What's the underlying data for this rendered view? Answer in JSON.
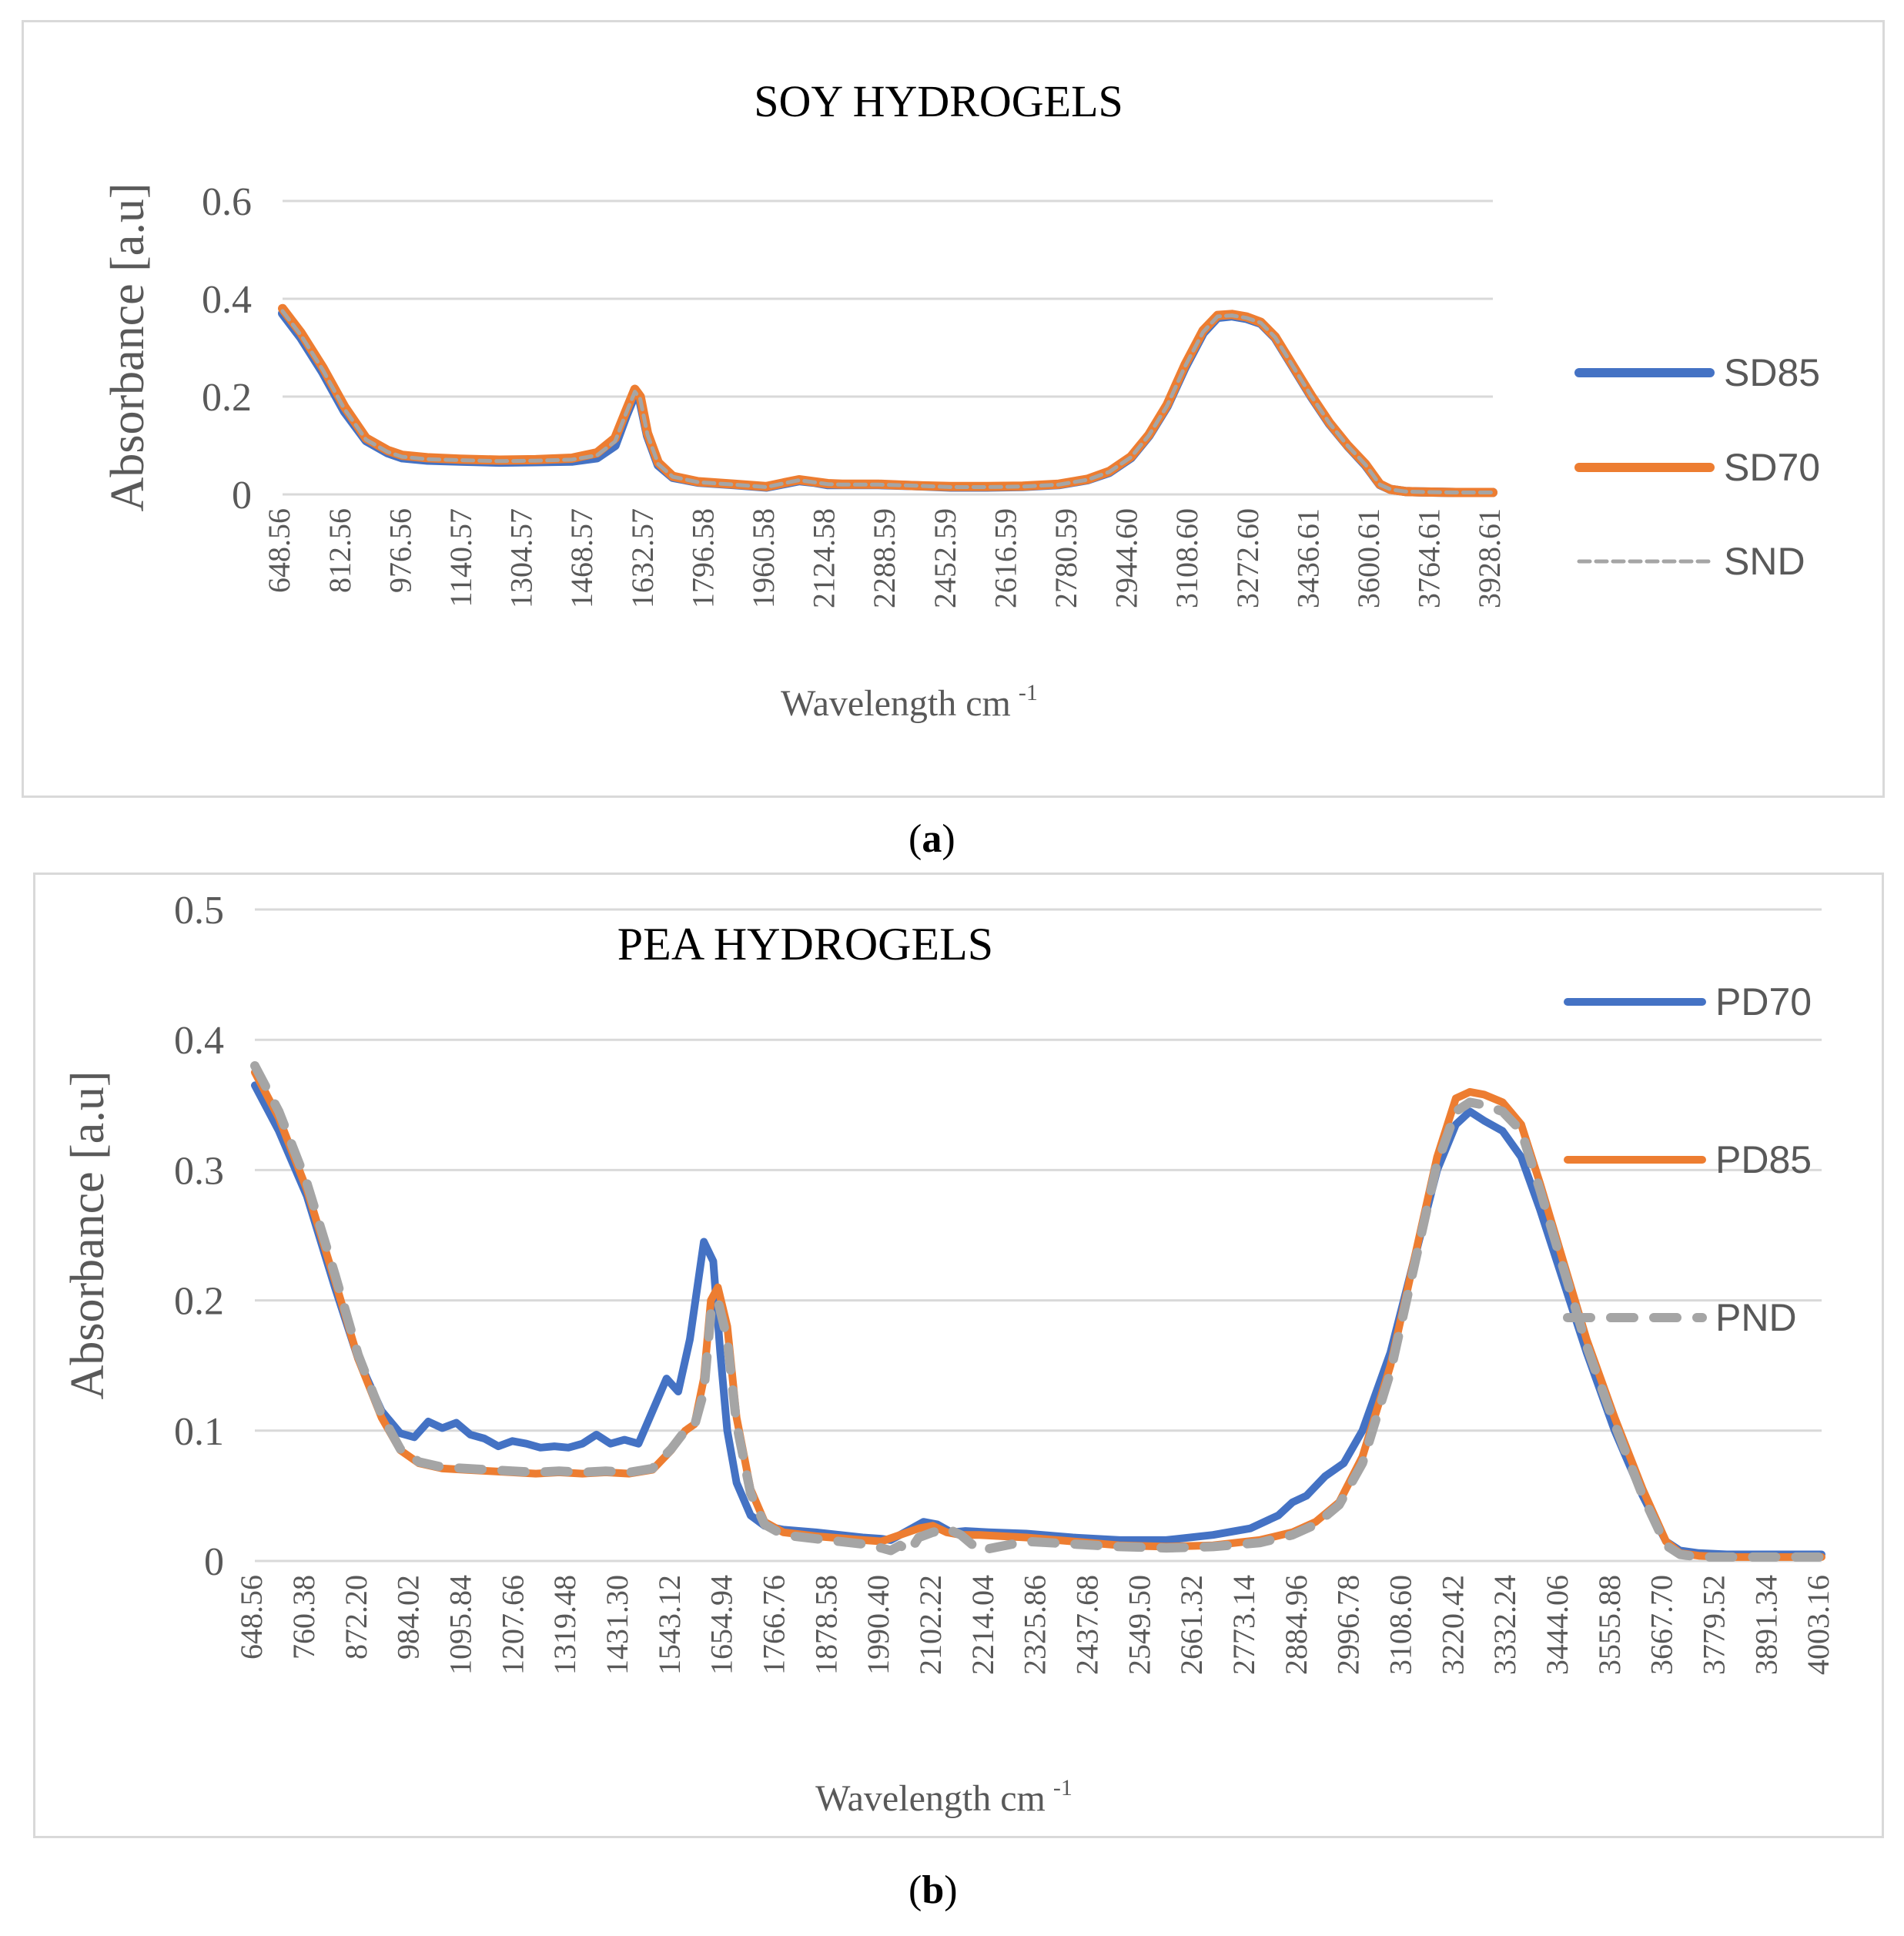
{
  "chart_data": [
    {
      "type": "line",
      "title": "SOY HYDROGELS",
      "xlabel": "Wavelength cm",
      "xlabel_superscript": "-1",
      "ylabel": "Absorbance [a.u]",
      "ylim": [
        0,
        0.6
      ],
      "yticks": [
        "0",
        "0.2",
        "0.4",
        "0.6"
      ],
      "xlim": [
        648.56,
        4003.16
      ],
      "xticks": [
        "648.56",
        "812.56",
        "976.56",
        "1140.57",
        "1304.57",
        "1468.57",
        "1632.57",
        "1796.58",
        "1960.58",
        "2124.58",
        "2288.59",
        "2452.59",
        "2616.59",
        "2780.59",
        "2944.60",
        "3108.60",
        "3272.60",
        "3436.61",
        "3600.61",
        "3764.61",
        "3928.61"
      ],
      "legend_position": "right",
      "series": [
        {
          "name": "SD85",
          "color": "#4472C4",
          "style": "solid",
          "x": [
            648.56,
            700,
            760,
            820,
            880,
            940,
            980,
            1050,
            1140,
            1250,
            1350,
            1450,
            1520,
            1570,
            1600,
            1625,
            1640,
            1660,
            1690,
            1730,
            1800,
            1900,
            1990,
            2040,
            2080,
            2120,
            2160,
            2200,
            2300,
            2400,
            2500,
            2600,
            2700,
            2800,
            2880,
            2940,
            3000,
            3050,
            3100,
            3150,
            3200,
            3240,
            3280,
            3320,
            3360,
            3400,
            3450,
            3500,
            3550,
            3600,
            3650,
            3690,
            3720,
            3760,
            3800,
            3900,
            4003.16
          ],
          "y": [
            0.37,
            0.32,
            0.25,
            0.17,
            0.11,
            0.085,
            0.075,
            0.07,
            0.068,
            0.066,
            0.067,
            0.068,
            0.075,
            0.1,
            0.16,
            0.205,
            0.19,
            0.12,
            0.06,
            0.035,
            0.025,
            0.02,
            0.015,
            0.022,
            0.028,
            0.025,
            0.02,
            0.02,
            0.02,
            0.018,
            0.015,
            0.015,
            0.016,
            0.02,
            0.03,
            0.045,
            0.075,
            0.12,
            0.18,
            0.26,
            0.33,
            0.362,
            0.365,
            0.36,
            0.35,
            0.32,
            0.26,
            0.2,
            0.145,
            0.1,
            0.06,
            0.02,
            0.01,
            0.006,
            0.005,
            0.004,
            0.004
          ]
        },
        {
          "name": "SD70",
          "color": "#ED7D31",
          "style": "solid",
          "x": [
            648.56,
            700,
            760,
            820,
            880,
            940,
            980,
            1050,
            1140,
            1250,
            1350,
            1450,
            1520,
            1570,
            1600,
            1625,
            1640,
            1660,
            1690,
            1730,
            1800,
            1900,
            1990,
            2040,
            2080,
            2120,
            2160,
            2200,
            2300,
            2400,
            2500,
            2600,
            2700,
            2800,
            2880,
            2940,
            3000,
            3050,
            3100,
            3150,
            3200,
            3240,
            3280,
            3320,
            3360,
            3400,
            3450,
            3500,
            3550,
            3600,
            3650,
            3690,
            3720,
            3760,
            3800,
            3900,
            4003.16
          ],
          "y": [
            0.38,
            0.33,
            0.26,
            0.18,
            0.115,
            0.09,
            0.08,
            0.075,
            0.072,
            0.07,
            0.071,
            0.074,
            0.085,
            0.115,
            0.17,
            0.215,
            0.2,
            0.125,
            0.065,
            0.037,
            0.026,
            0.021,
            0.016,
            0.024,
            0.03,
            0.026,
            0.022,
            0.021,
            0.021,
            0.018,
            0.016,
            0.016,
            0.017,
            0.021,
            0.031,
            0.047,
            0.077,
            0.122,
            0.183,
            0.265,
            0.335,
            0.366,
            0.368,
            0.363,
            0.352,
            0.322,
            0.262,
            0.202,
            0.147,
            0.101,
            0.062,
            0.021,
            0.01,
            0.006,
            0.005,
            0.004,
            0.004
          ]
        },
        {
          "name": "SND",
          "color": "#A5A5A5",
          "style": "dotted",
          "x": [
            648.56,
            700,
            760,
            820,
            880,
            940,
            980,
            1050,
            1140,
            1250,
            1350,
            1450,
            1520,
            1570,
            1600,
            1625,
            1640,
            1660,
            1690,
            1730,
            1800,
            1900,
            1990,
            2040,
            2080,
            2120,
            2160,
            2200,
            2300,
            2400,
            2500,
            2600,
            2700,
            2800,
            2880,
            2940,
            3000,
            3050,
            3100,
            3150,
            3200,
            3240,
            3280,
            3320,
            3360,
            3400,
            3450,
            3500,
            3550,
            3600,
            3650,
            3690,
            3720,
            3760,
            3800,
            3900,
            4003.16
          ],
          "y": [
            0.375,
            0.325,
            0.255,
            0.175,
            0.112,
            0.087,
            0.077,
            0.072,
            0.07,
            0.068,
            0.069,
            0.071,
            0.08,
            0.108,
            0.165,
            0.21,
            0.195,
            0.122,
            0.062,
            0.036,
            0.025,
            0.02,
            0.015,
            0.023,
            0.029,
            0.025,
            0.021,
            0.02,
            0.02,
            0.018,
            0.015,
            0.015,
            0.016,
            0.02,
            0.03,
            0.046,
            0.076,
            0.121,
            0.181,
            0.262,
            0.332,
            0.364,
            0.366,
            0.361,
            0.351,
            0.321,
            0.261,
            0.201,
            0.146,
            0.1,
            0.061,
            0.02,
            0.01,
            0.006,
            0.005,
            0.004,
            0.004
          ]
        }
      ]
    },
    {
      "type": "line",
      "title": "PEA HYDROGELS",
      "xlabel": "Wavelength cm",
      "xlabel_superscript": "-1",
      "ylabel": "Absorbance [a.u]",
      "ylim": [
        0,
        0.5
      ],
      "yticks": [
        "0",
        "0.1",
        "0.2",
        "0.3",
        "0.4",
        "0.5"
      ],
      "xlim": [
        648.56,
        4003.16
      ],
      "xticks": [
        "648.56",
        "760.38",
        "872.20",
        "984.02",
        "1095.84",
        "1207.66",
        "1319.48",
        "1431.30",
        "1543.12",
        "1654.94",
        "1766.76",
        "1878.58",
        "1990.40",
        "2102.22",
        "2214.04",
        "2325.86",
        "2437.68",
        "2549.50",
        "2661.32",
        "2773.14",
        "2884.96",
        "2996.78",
        "3108.60",
        "3220.42",
        "3332.24",
        "3444.06",
        "3555.88",
        "3667.70",
        "3779.52",
        "3891.34",
        "4003.16"
      ],
      "legend_position": "right",
      "series": [
        {
          "name": "PD70",
          "color": "#4472C4",
          "style": "solid",
          "x": [
            648.56,
            700,
            760,
            820,
            870,
            920,
            960,
            990,
            1020,
            1050,
            1080,
            1110,
            1140,
            1170,
            1200,
            1230,
            1260,
            1290,
            1320,
            1350,
            1380,
            1410,
            1440,
            1470,
            1500,
            1530,
            1555,
            1580,
            1610,
            1630,
            1645,
            1660,
            1680,
            1710,
            1740,
            1780,
            1850,
            1950,
            1990,
            2010,
            2040,
            2080,
            2110,
            2140,
            2170,
            2220,
            2300,
            2400,
            2500,
            2600,
            2700,
            2780,
            2840,
            2870,
            2900,
            2940,
            2980,
            3020,
            3080,
            3130,
            3180,
            3220,
            3250,
            3280,
            3320,
            3360,
            3400,
            3450,
            3500,
            3560,
            3620,
            3670,
            3700,
            3740,
            3800,
            3900,
            4003.16
          ],
          "y": [
            0.365,
            0.33,
            0.28,
            0.21,
            0.155,
            0.115,
            0.098,
            0.095,
            0.107,
            0.102,
            0.106,
            0.097,
            0.094,
            0.088,
            0.092,
            0.09,
            0.087,
            0.088,
            0.087,
            0.09,
            0.097,
            0.09,
            0.093,
            0.09,
            0.115,
            0.14,
            0.13,
            0.17,
            0.245,
            0.23,
            0.16,
            0.1,
            0.06,
            0.035,
            0.027,
            0.024,
            0.022,
            0.018,
            0.017,
            0.016,
            0.022,
            0.03,
            0.028,
            0.022,
            0.023,
            0.022,
            0.021,
            0.018,
            0.016,
            0.016,
            0.02,
            0.025,
            0.035,
            0.045,
            0.05,
            0.065,
            0.075,
            0.1,
            0.16,
            0.23,
            0.3,
            0.335,
            0.345,
            0.338,
            0.33,
            0.31,
            0.27,
            0.215,
            0.16,
            0.1,
            0.05,
            0.015,
            0.008,
            0.006,
            0.005,
            0.005,
            0.005
          ]
        },
        {
          "name": "PD85",
          "color": "#ED7D31",
          "style": "solid",
          "x": [
            648.56,
            700,
            760,
            820,
            870,
            920,
            960,
            1000,
            1050,
            1100,
            1150,
            1200,
            1250,
            1300,
            1350,
            1400,
            1450,
            1500,
            1540,
            1570,
            1590,
            1610,
            1625,
            1640,
            1660,
            1680,
            1710,
            1740,
            1780,
            1850,
            1950,
            1990,
            2030,
            2070,
            2100,
            2130,
            2160,
            2200,
            2300,
            2400,
            2500,
            2600,
            2700,
            2800,
            2870,
            2920,
            2970,
            3020,
            3080,
            3130,
            3180,
            3220,
            3250,
            3280,
            3320,
            3360,
            3400,
            3450,
            3500,
            3560,
            3620,
            3670,
            3700,
            3740,
            3800,
            3900,
            4003.16
          ],
          "y": [
            0.375,
            0.34,
            0.285,
            0.215,
            0.155,
            0.11,
            0.085,
            0.075,
            0.071,
            0.07,
            0.069,
            0.068,
            0.067,
            0.068,
            0.067,
            0.068,
            0.067,
            0.07,
            0.085,
            0.1,
            0.105,
            0.14,
            0.2,
            0.21,
            0.18,
            0.11,
            0.055,
            0.03,
            0.022,
            0.019,
            0.016,
            0.015,
            0.02,
            0.025,
            0.027,
            0.022,
            0.02,
            0.02,
            0.018,
            0.015,
            0.012,
            0.011,
            0.012,
            0.016,
            0.022,
            0.03,
            0.045,
            0.08,
            0.15,
            0.23,
            0.31,
            0.355,
            0.36,
            0.358,
            0.352,
            0.335,
            0.29,
            0.23,
            0.17,
            0.11,
            0.055,
            0.015,
            0.006,
            0.004,
            0.003,
            0.003,
            0.003
          ]
        },
        {
          "name": "PND",
          "color": "#A5A5A5",
          "style": "dashed",
          "x": [
            648.56,
            700,
            760,
            820,
            870,
            920,
            960,
            1000,
            1050,
            1100,
            1150,
            1200,
            1250,
            1300,
            1350,
            1400,
            1450,
            1500,
            1540,
            1570,
            1590,
            1610,
            1625,
            1640,
            1660,
            1680,
            1710,
            1740,
            1780,
            1850,
            1950,
            1990,
            2010,
            2030,
            2050,
            2070,
            2100,
            2130,
            2160,
            2200,
            2300,
            2400,
            2500,
            2600,
            2700,
            2800,
            2870,
            2920,
            2970,
            3020,
            3080,
            3130,
            3180,
            3220,
            3250,
            3280,
            3320,
            3360,
            3400,
            3450,
            3500,
            3560,
            3620,
            3670,
            3700,
            3740,
            3800,
            3900,
            4003.16
          ],
          "y": [
            0.38,
            0.345,
            0.29,
            0.22,
            0.158,
            0.112,
            0.086,
            0.076,
            0.072,
            0.071,
            0.07,
            0.069,
            0.068,
            0.069,
            0.068,
            0.069,
            0.068,
            0.071,
            0.086,
            0.1,
            0.104,
            0.13,
            0.19,
            0.2,
            0.17,
            0.105,
            0.052,
            0.028,
            0.02,
            0.017,
            0.013,
            0.01,
            0.008,
            0.012,
            0.007,
            0.018,
            0.022,
            0.025,
            0.02,
            0.008,
            0.015,
            0.013,
            0.011,
            0.01,
            0.011,
            0.014,
            0.02,
            0.028,
            0.043,
            0.075,
            0.145,
            0.225,
            0.305,
            0.345,
            0.352,
            0.35,
            0.345,
            0.33,
            0.285,
            0.225,
            0.165,
            0.105,
            0.05,
            0.012,
            0.005,
            0.003,
            0.003,
            0.003,
            0.003
          ]
        }
      ]
    }
  ],
  "captions": {
    "a": "a",
    "b": "b"
  }
}
